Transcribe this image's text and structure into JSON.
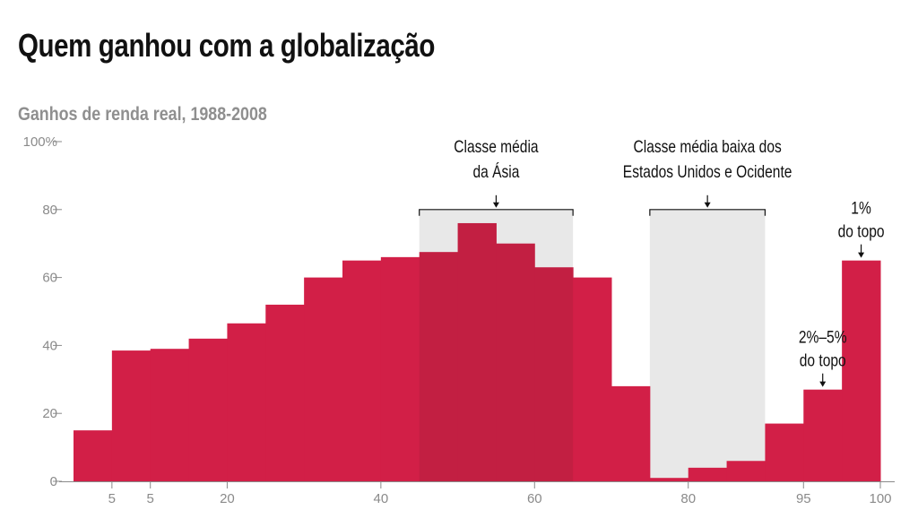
{
  "chart_data": {
    "type": "bar",
    "title": "Quem ganhou com a globalização",
    "subtitle": "Ganhos de renda real, 1988-2008",
    "xlabel": "",
    "ylabel": "",
    "ylim": [
      0,
      100
    ],
    "yticks": [
      {
        "value": 0,
        "label": "0"
      },
      {
        "value": 20,
        "label": "20"
      },
      {
        "value": 40,
        "label": "40"
      },
      {
        "value": 60,
        "label": "60"
      },
      {
        "value": 80,
        "label": "80"
      },
      {
        "value": 100,
        "label": "100%"
      }
    ],
    "xtick_labels": [
      {
        "after_bar": 0,
        "label": "5"
      },
      {
        "after_bar": 1,
        "label": "5"
      },
      {
        "after_bar": 3,
        "label": "20"
      },
      {
        "after_bar": 7,
        "label": "40"
      },
      {
        "after_bar": 11,
        "label": "60"
      },
      {
        "after_bar": 15,
        "label": "80"
      },
      {
        "after_bar": 18,
        "label": "95"
      },
      {
        "after_bar": 20,
        "label": "100"
      }
    ],
    "values": [
      15,
      38.5,
      39,
      42,
      46.5,
      52,
      60,
      65,
      66,
      67.5,
      76,
      70,
      63,
      60,
      28,
      1,
      4,
      6,
      17,
      27,
      65
    ],
    "bar_color": "#d21f47",
    "highlight_color": "#c21f42",
    "band_color": "#e8e8e8",
    "annotations": [
      {
        "name": "asia-middle-class",
        "lines": [
          "Classe média",
          "da Ásia"
        ],
        "from_bar": 9,
        "to_bar": 12,
        "band_top": 80,
        "bracket": true
      },
      {
        "name": "west-lower-middle-class",
        "lines": [
          "Classe média baixa dos",
          "Estados Unidos e Ocidente"
        ],
        "from_bar": 15,
        "to_bar": 17,
        "band_top": 80,
        "bracket": true
      },
      {
        "name": "top-2-5",
        "lines": [
          "2%–5%",
          "do topo"
        ],
        "at_bar": 19,
        "bracket": false
      },
      {
        "name": "top-1",
        "lines": [
          "1%",
          "do topo"
        ],
        "at_bar": 20,
        "bracket": false
      }
    ]
  }
}
